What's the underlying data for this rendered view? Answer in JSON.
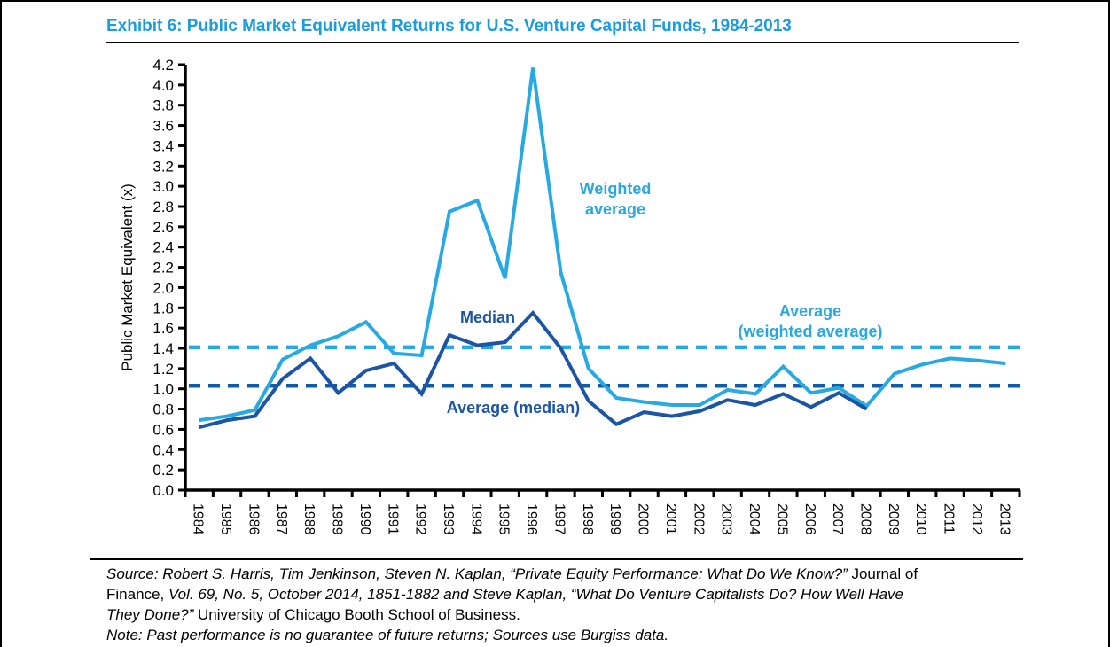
{
  "title": "Exhibit 6: Public Market Equivalent Returns for U.S. Venture Capital Funds, 1984-2013",
  "colors": {
    "title_blue": "#1B9CDE",
    "light_blue": "#29A9E1",
    "dark_blue": "#1C55A3",
    "dark_dashed": "#0F5CAC",
    "axis_black": "#000000"
  },
  "annotations": {
    "weighted_average": {
      "line1": "Weighted",
      "line2": "average"
    },
    "median": "Median",
    "avg_weighted": {
      "line1": "Average",
      "line2": "(weighted average)"
    },
    "avg_median": "Average (median)"
  },
  "chart_data": {
    "type": "line",
    "title": "Exhibit 6: Public Market Equivalent Returns for U.S. Venture Capital Funds, 1984-2013",
    "xlabel": "",
    "ylabel": "Public Market Equivalent (x)",
    "ylim": [
      0,
      4.2
    ],
    "ytick_step": 0.2,
    "grid": false,
    "legend_position": "inline-annotations",
    "x": [
      1984,
      1985,
      1986,
      1987,
      1988,
      1989,
      1990,
      1991,
      1992,
      1993,
      1994,
      1995,
      1996,
      1997,
      1998,
      1999,
      2000,
      2001,
      2002,
      2003,
      2004,
      2005,
      2006,
      2007,
      2008,
      2009,
      2010,
      2011,
      2012,
      2013
    ],
    "series": [
      {
        "name": "Weighted average",
        "color": "#29A9E1",
        "values": [
          0.69,
          0.73,
          0.79,
          1.29,
          1.43,
          1.52,
          1.66,
          1.35,
          1.33,
          2.75,
          2.86,
          2.09,
          4.17,
          2.15,
          1.2,
          0.91,
          0.87,
          0.84,
          0.84,
          0.99,
          0.95,
          1.22,
          0.96,
          1.01,
          0.83,
          1.15,
          1.24,
          1.3,
          1.28,
          1.25
        ]
      },
      {
        "name": "Median",
        "color": "#1C55A3",
        "values": [
          0.62,
          0.69,
          0.73,
          1.1,
          1.3,
          0.96,
          1.18,
          1.25,
          0.95,
          1.53,
          1.43,
          1.46,
          1.75,
          1.4,
          0.88,
          0.65,
          0.77,
          0.73,
          0.78,
          0.89,
          0.84,
          0.95,
          0.82,
          0.96,
          0.8,
          null,
          null,
          null,
          null,
          null
        ]
      }
    ],
    "reference_lines": [
      {
        "name": "Average (weighted average)",
        "value": 1.41,
        "color": "#29A9E1",
        "style": "dashed"
      },
      {
        "name": "Average (median)",
        "value": 1.03,
        "color": "#0F5CAC",
        "style": "dashed"
      }
    ]
  },
  "footer": {
    "lines": [
      [
        {
          "text": "Source: Robert S. Harris, Tim Jenkinson, Steven N. Kaplan, “Private Equity Performance: What Do We Know?” ",
          "italic": true
        },
        {
          "text": "Journal of",
          "italic": false
        }
      ],
      [
        {
          "text": "Finance, ",
          "italic": false
        },
        {
          "text": "Vol. 69, No. 5, October 2014, 1851-1882 and Steve Kaplan, “What Do Venture Capitalists Do? How Well Have",
          "italic": true
        }
      ],
      [
        {
          "text": "They Done?” ",
          "italic": true
        },
        {
          "text": "University of Chicago Booth School of Business.",
          "italic": false
        }
      ],
      [
        {
          "text": "Note: Past performance is no guarantee of future returns; Sources use Burgiss data.",
          "italic": true
        }
      ]
    ]
  }
}
